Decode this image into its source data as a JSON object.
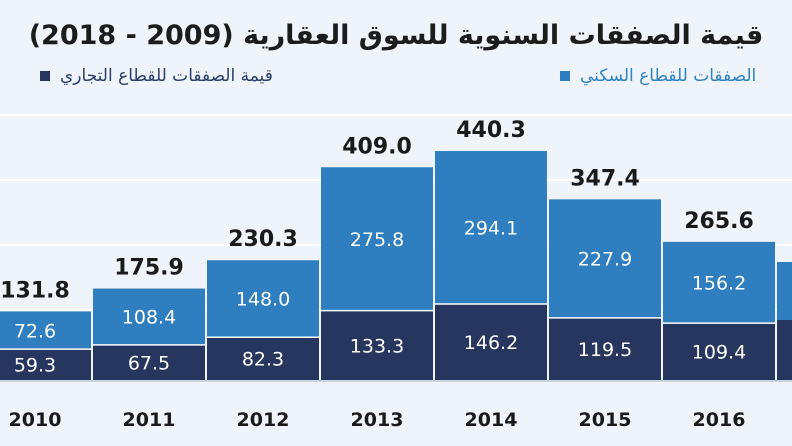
{
  "chart_data": {
    "type": "bar",
    "stacked": true,
    "title": "قيمة الصفقات السنوية للسوق العقارية (2009 - 2018)",
    "categories": [
      "2010",
      "2011",
      "2012",
      "2013",
      "2014",
      "2015",
      "2016"
    ],
    "series": [
      {
        "name": "قيمة الصفقات للقطاع التجاري",
        "color": "#27365f",
        "values": [
          59.3,
          67.5,
          82.3,
          133.3,
          146.2,
          119.5,
          109.4
        ]
      },
      {
        "name": "الصفقات للقطاع السكني",
        "color": "#2e7ec0",
        "values": [
          72.6,
          108.4,
          148.0,
          275.8,
          294.1,
          227.9,
          156.2
        ]
      }
    ],
    "totals": [
      131.8,
      175.9,
      230.3,
      409.0,
      440.3,
      347.4,
      265.6
    ],
    "legend_position": "top",
    "grid": true
  },
  "legend": {
    "commercial_label": "قيمة الصفقات للقطاع التجاري",
    "residential_label": "الصفقات للقطاع السكني",
    "commercial_color": "#27365f",
    "residential_color": "#2e7ec0"
  }
}
